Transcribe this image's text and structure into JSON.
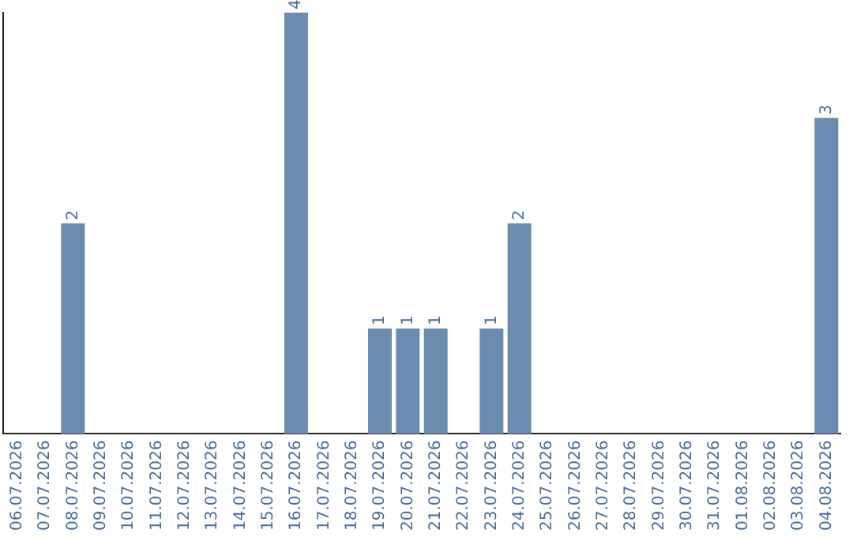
{
  "chart_data": {
    "type": "bar",
    "categories": [
      "06.07.2026",
      "07.07.2026",
      "08.07.2026",
      "09.07.2026",
      "10.07.2026",
      "11.07.2026",
      "12.07.2026",
      "13.07.2026",
      "14.07.2026",
      "15.07.2026",
      "16.07.2026",
      "17.07.2026",
      "18.07.2026",
      "19.07.2026",
      "20.07.2026",
      "21.07.2026",
      "22.07.2026",
      "23.07.2026",
      "24.07.2026",
      "25.07.2026",
      "26.07.2026",
      "27.07.2026",
      "28.07.2026",
      "29.07.2026",
      "30.07.2026",
      "31.07.2026",
      "01.08.2026",
      "02.08.2026",
      "03.08.2026",
      "04.08.2026"
    ],
    "values": [
      0,
      0,
      2,
      0,
      0,
      0,
      0,
      0,
      0,
      0,
      4,
      0,
      0,
      1,
      1,
      1,
      0,
      1,
      2,
      0,
      0,
      0,
      0,
      0,
      0,
      0,
      0,
      0,
      0,
      3
    ],
    "value_labels": [
      null,
      null,
      "2",
      null,
      null,
      null,
      null,
      null,
      null,
      null,
      "4",
      null,
      null,
      "1",
      "1",
      "1",
      null,
      "1",
      "2",
      null,
      null,
      null,
      null,
      null,
      null,
      null,
      null,
      null,
      null,
      "3"
    ],
    "color": "#6b8cae",
    "grid": false,
    "legend": false,
    "tick_labels": "x"
  }
}
